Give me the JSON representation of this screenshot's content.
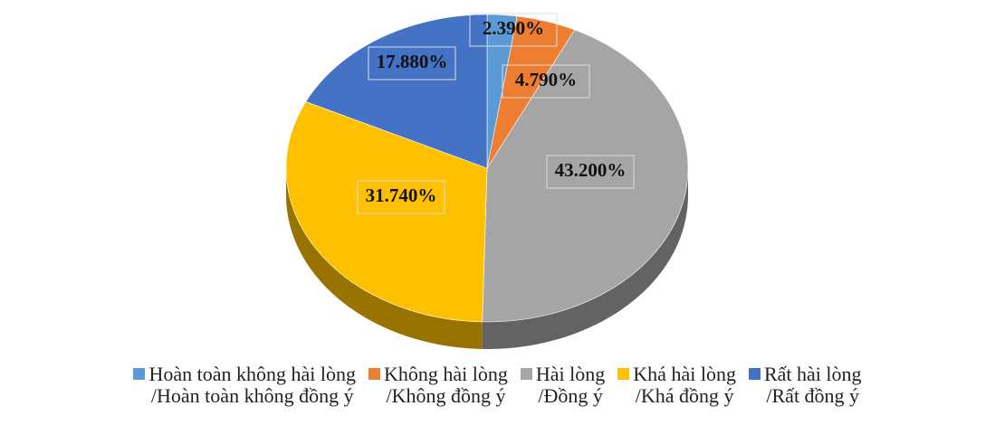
{
  "chart_data": {
    "type": "pie",
    "categories": [
      "Hoàn toàn không hài lòng\n/Hoàn toàn không đồng ý",
      "Không hài lòng\n/Không đồng ý",
      "Hài lòng\n/Đồng ý",
      "Khá hài lòng\n/Khá đồng ý",
      "Rất hài lòng\n/Rất đồng ý"
    ],
    "values": [
      2.39,
      4.79,
      43.2,
      31.74,
      17.88
    ],
    "value_labels": [
      "2.390%",
      "4.790%",
      "43.200%",
      "31.740%",
      "17.880%"
    ],
    "colors": [
      "#5b9bd5",
      "#ed7d31",
      "#a5a5a5",
      "#ffc000",
      "#4472c4"
    ],
    "legend": "bottom"
  }
}
